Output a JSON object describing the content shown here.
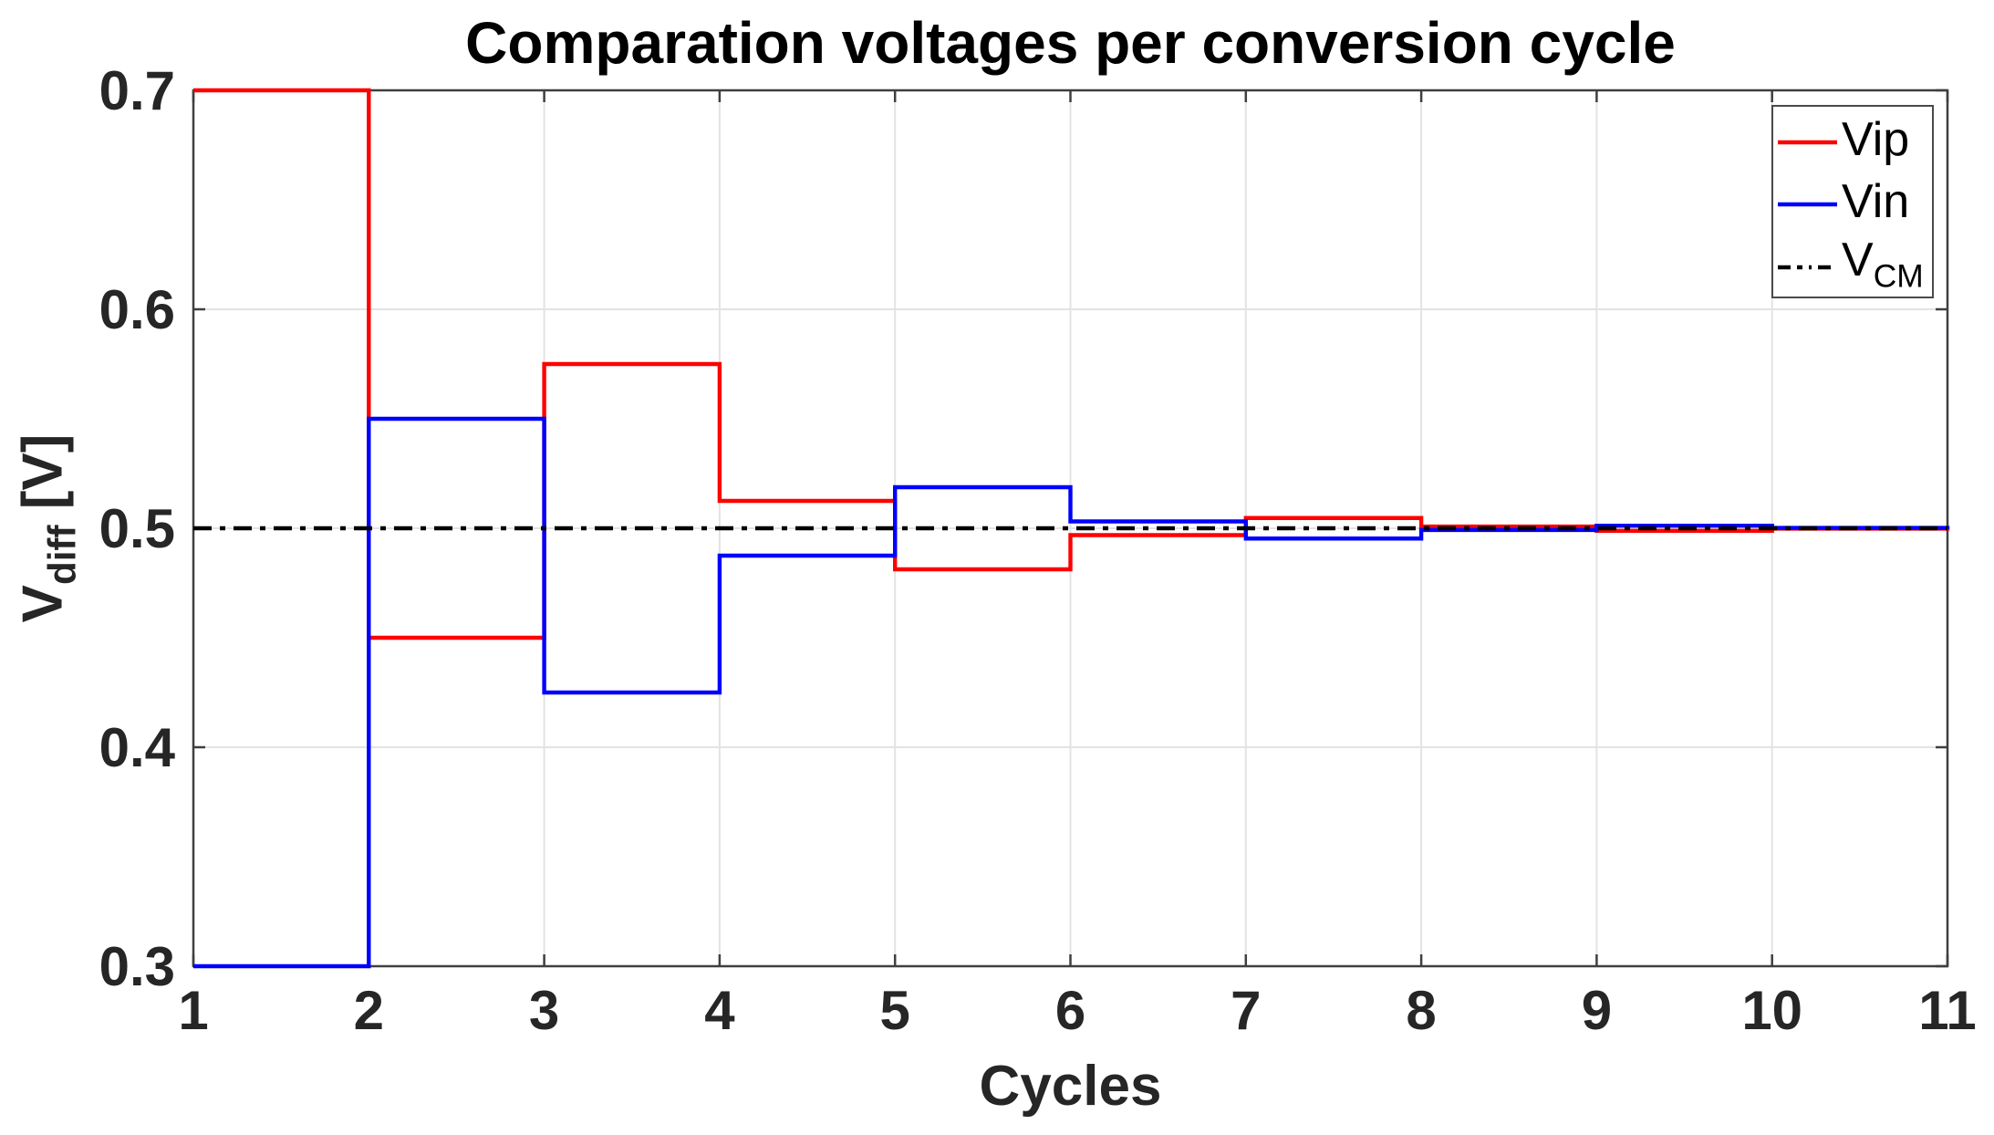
{
  "chart_data": {
    "type": "line",
    "subtype": "stairs",
    "title": "Comparation voltages per conversion cycle",
    "xlabel": "Cycles",
    "ylabel": {
      "main": "V",
      "sub": "diff",
      "unit": " [V]"
    },
    "xlim": [
      1,
      11
    ],
    "ylim": [
      0.3,
      0.7
    ],
    "grid": true,
    "xticks": [
      1,
      2,
      3,
      4,
      5,
      6,
      7,
      8,
      9,
      10,
      11
    ],
    "xtick_labels": [
      "1",
      "2",
      "3",
      "4",
      "5",
      "6",
      "7",
      "8",
      "9",
      "10",
      "11"
    ],
    "yticks": [
      0.3,
      0.4,
      0.5,
      0.6,
      0.7
    ],
    "ytick_labels": [
      "0.3",
      "0.4",
      "0.5",
      "0.6",
      "0.7"
    ],
    "x": [
      1,
      2,
      3,
      4,
      5,
      6,
      7,
      8,
      9,
      10,
      11
    ],
    "series": [
      {
        "name": "Vip",
        "color": "#ff0000",
        "line_style": "solid",
        "draw": "stairs",
        "values": [
          0.7,
          0.45,
          0.575,
          0.5125,
          0.48125,
          0.496875,
          0.5046875,
          0.5007813,
          0.4988281,
          0.4998047,
          0.500293
        ]
      },
      {
        "name": "Vin",
        "color": "#0000ff",
        "line_style": "solid",
        "draw": "stairs",
        "values": [
          0.3,
          0.55,
          0.425,
          0.4875,
          0.51875,
          0.503125,
          0.4953125,
          0.4992188,
          0.5011719,
          0.5001953,
          0.499707
        ]
      },
      {
        "name": "VCM",
        "color": "#000000",
        "line_style": "dash-dot",
        "draw": "line",
        "values": [
          0.5,
          0.5,
          0.5,
          0.5,
          0.5,
          0.5,
          0.5,
          0.5,
          0.5,
          0.5,
          0.5
        ]
      }
    ],
    "legend": {
      "position": "top-right",
      "entries": [
        {
          "label": "Vip",
          "sub": "",
          "color": "#ff0000",
          "style": "solid"
        },
        {
          "label": "Vin",
          "sub": "",
          "color": "#0000ff",
          "style": "solid"
        },
        {
          "label": "V",
          "sub": "CM",
          "color": "#000000",
          "style": "dash-dot"
        }
      ]
    },
    "colors": {
      "background": "#ffffff",
      "grid": "#e3e3e3",
      "axis": "#3f3f3f",
      "tick_label": "#262626"
    }
  }
}
